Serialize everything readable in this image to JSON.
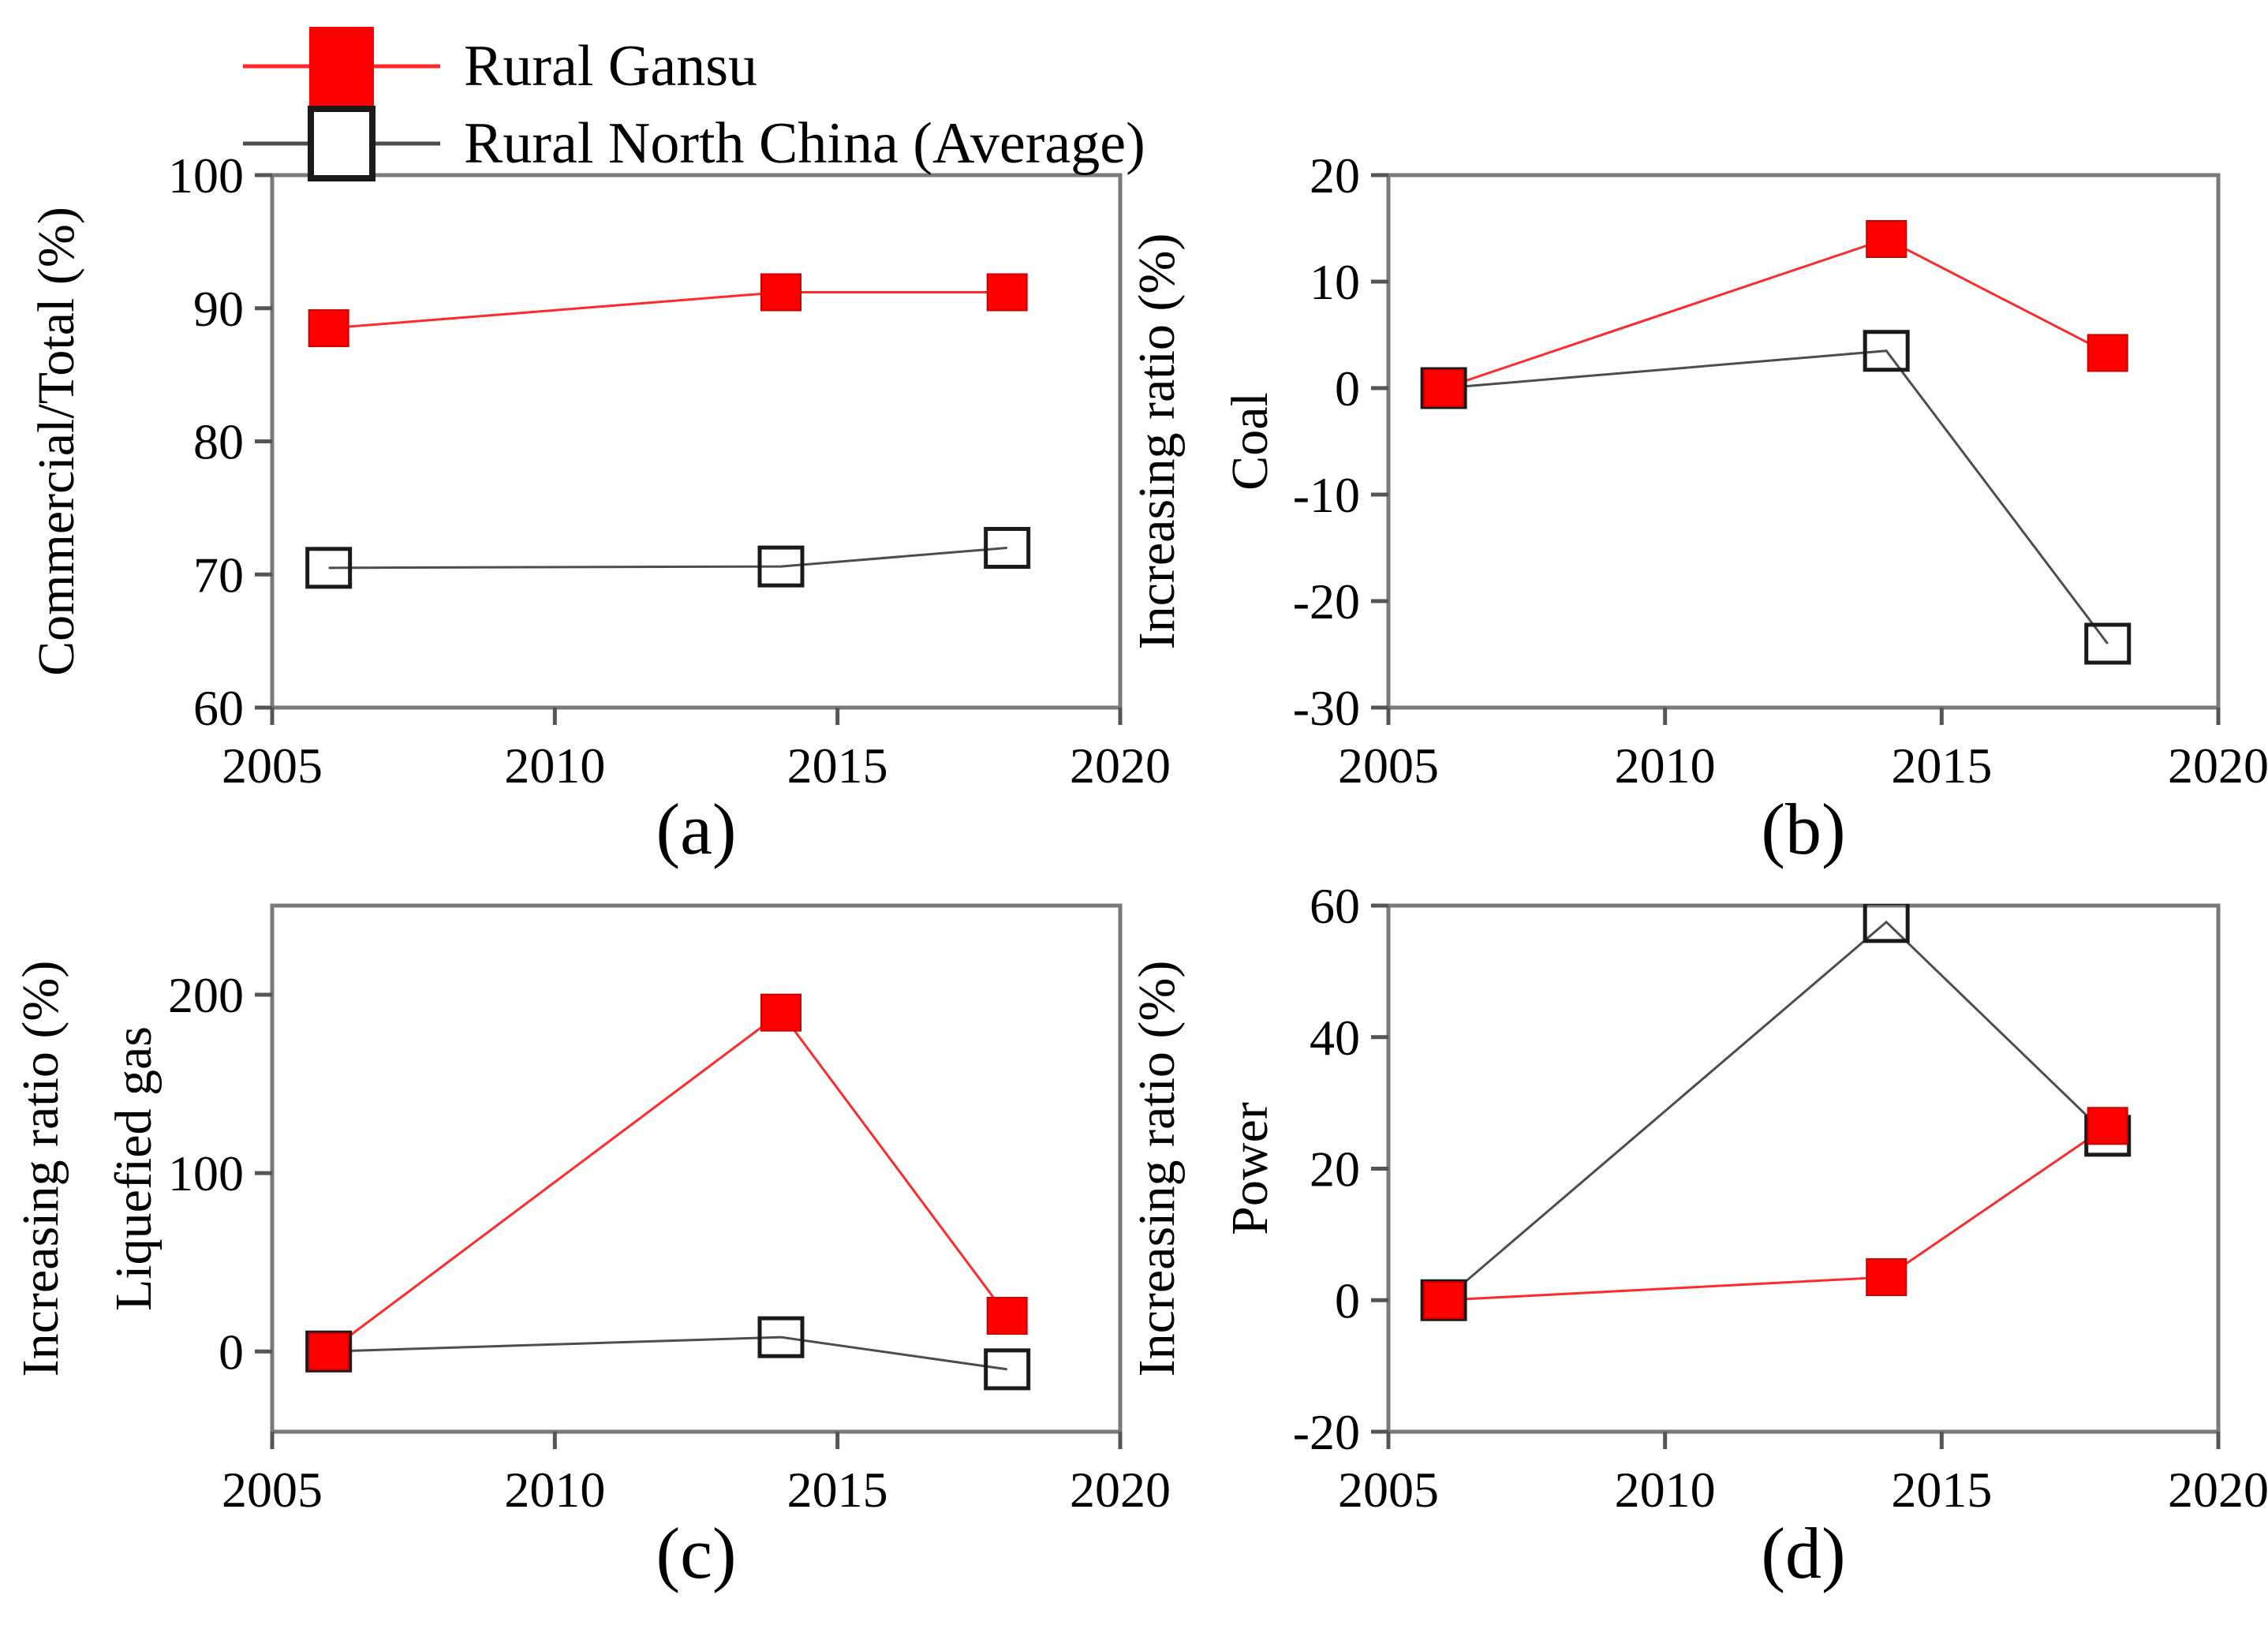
{
  "figure": {
    "background": "#ffffff",
    "frame_color": "#7a7a7a",
    "tick_color": "#555555",
    "legend": {
      "items": [
        {
          "label": "Rural Gansu",
          "marker": "filled-square",
          "marker_name": "red-filled-square-icon",
          "color": "#ff0000",
          "line_color": "#ff2a2a"
        },
        {
          "label": "Rural North China (Average)",
          "marker": "open-square",
          "marker_name": "open-square-icon",
          "color": "#1a1a1a",
          "line_color": "#4d4d4d"
        }
      ]
    }
  },
  "chart_data": [
    {
      "id": "a",
      "type": "line",
      "caption": "(a)",
      "ylabel_lines": [
        "Commercial/Total (%)"
      ],
      "xlabel": "",
      "x": [
        2006,
        2014,
        2018
      ],
      "xlim": [
        2005,
        2020
      ],
      "xticks": [
        2005,
        2010,
        2015,
        2020
      ],
      "ylim": [
        60,
        100
      ],
      "yticks": [
        60,
        70,
        80,
        90,
        100
      ],
      "grid": false,
      "series": [
        {
          "name": "Rural Gansu",
          "values": [
            88.5,
            91.2,
            91.2
          ]
        },
        {
          "name": "Rural North China (Average)",
          "values": [
            70.5,
            70.6,
            72.0
          ]
        }
      ]
    },
    {
      "id": "b",
      "type": "line",
      "caption": "(b)",
      "ylabel_lines": [
        "Increasing ratio (%)",
        "Coal"
      ],
      "xlabel": "",
      "x": [
        2006,
        2014,
        2018
      ],
      "xlim": [
        2005,
        2020
      ],
      "xticks": [
        2005,
        2010,
        2015,
        2020
      ],
      "ylim": [
        -30,
        20
      ],
      "yticks": [
        -30,
        -20,
        -10,
        0,
        10,
        20
      ],
      "grid": false,
      "series": [
        {
          "name": "Rural Gansu",
          "values": [
            0,
            14,
            3.3
          ]
        },
        {
          "name": "Rural North China (Average)",
          "values": [
            0,
            3.5,
            -24
          ]
        }
      ]
    },
    {
      "id": "c",
      "type": "line",
      "caption": "(c)",
      "ylabel_lines": [
        "Increasing ratio (%)",
        "Liquefied gas"
      ],
      "xlabel": "",
      "x": [
        2006,
        2014,
        2018
      ],
      "xlim": [
        2005,
        2020
      ],
      "xticks": [
        2005,
        2010,
        2015,
        2020
      ],
      "ylim": [
        -45,
        250
      ],
      "yticks": [
        0,
        100,
        200
      ],
      "grid": false,
      "series": [
        {
          "name": "Rural Gansu",
          "values": [
            0,
            190,
            20
          ]
        },
        {
          "name": "Rural North China (Average)",
          "values": [
            0,
            8,
            -10
          ]
        }
      ]
    },
    {
      "id": "d",
      "type": "line",
      "caption": "(d)",
      "ylabel_lines": [
        "Increasing ratio (%)",
        "Power"
      ],
      "xlabel": "",
      "x": [
        2006,
        2014,
        2018
      ],
      "xlim": [
        2005,
        2020
      ],
      "xticks": [
        2005,
        2010,
        2015,
        2020
      ],
      "ylim": [
        -20,
        60
      ],
      "yticks": [
        -20,
        0,
        20,
        40,
        60
      ],
      "grid": false,
      "series": [
        {
          "name": "Rural Gansu",
          "values": [
            0,
            3.5,
            26.5
          ]
        },
        {
          "name": "Rural North China (Average)",
          "values": [
            0,
            57.5,
            25
          ]
        }
      ]
    }
  ]
}
